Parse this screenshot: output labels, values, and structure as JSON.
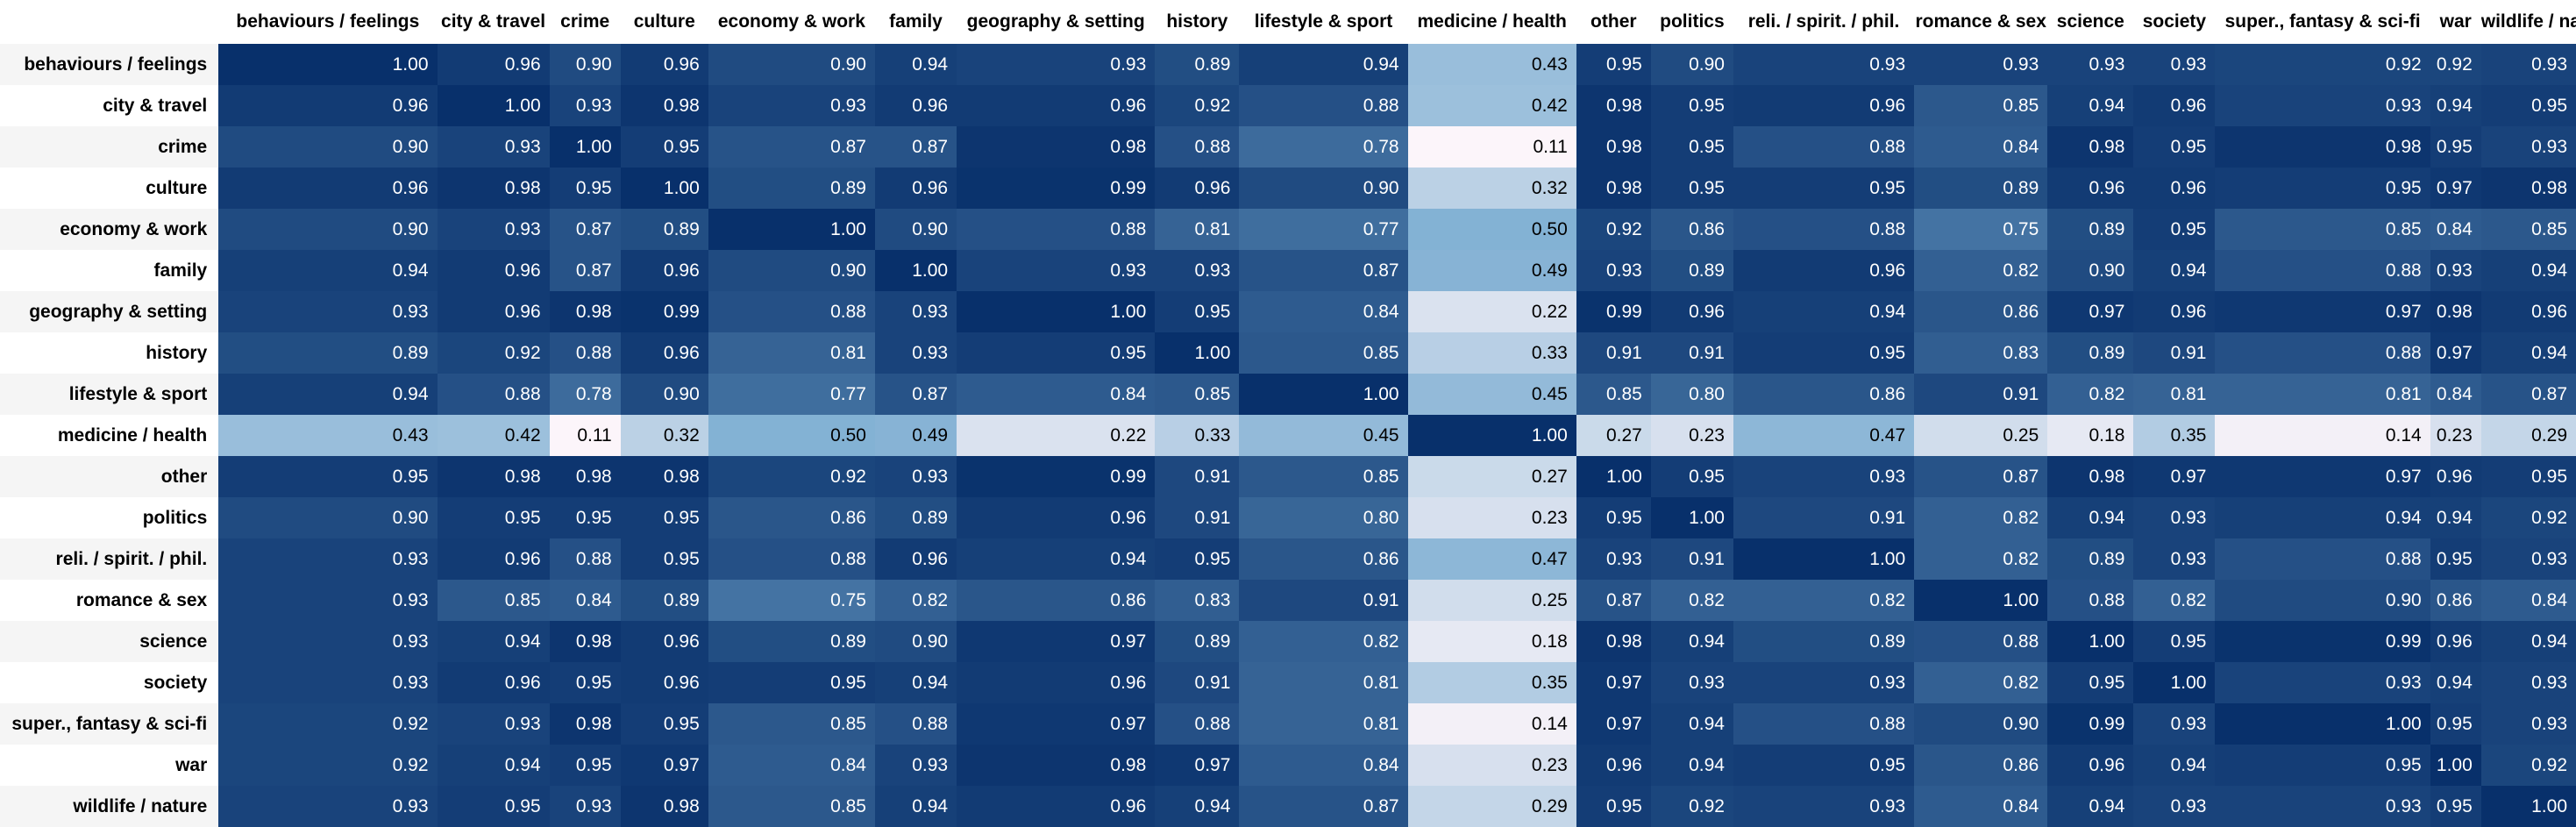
{
  "chart_data": {
    "type": "heatmap",
    "colormap": {
      "low": "#fff7fb",
      "mid": "#74a9cf",
      "high": "#08306b"
    },
    "columns": [
      "behaviours / feelings",
      "city & travel",
      "crime",
      "culture",
      "economy & work",
      "family",
      "geography & setting",
      "history",
      "lifestyle & sport",
      "medicine / health",
      "other",
      "politics",
      "reli. / spirit. / phil.",
      "romance & sex",
      "science",
      "society",
      "super., fantasy & sci-fi",
      "war",
      "wildlife / nature"
    ],
    "rows": [
      "behaviours / feelings",
      "city & travel",
      "crime",
      "culture",
      "economy & work",
      "family",
      "geography & setting",
      "history",
      "lifestyle & sport",
      "medicine / health",
      "other",
      "politics",
      "reli. / spirit. / phil.",
      "romance & sex",
      "science",
      "society",
      "super., fantasy & sci-fi",
      "war",
      "wildlife / nature"
    ],
    "values": [
      [
        1.0,
        0.96,
        0.9,
        0.96,
        0.9,
        0.94,
        0.93,
        0.89,
        0.94,
        0.43,
        0.95,
        0.9,
        0.93,
        0.93,
        0.93,
        0.93,
        0.92,
        0.92,
        0.93
      ],
      [
        0.96,
        1.0,
        0.93,
        0.98,
        0.93,
        0.96,
        0.96,
        0.92,
        0.88,
        0.42,
        0.98,
        0.95,
        0.96,
        0.85,
        0.94,
        0.96,
        0.93,
        0.94,
        0.95
      ],
      [
        0.9,
        0.93,
        1.0,
        0.95,
        0.87,
        0.87,
        0.98,
        0.88,
        0.78,
        0.11,
        0.98,
        0.95,
        0.88,
        0.84,
        0.98,
        0.95,
        0.98,
        0.95,
        0.93
      ],
      [
        0.96,
        0.98,
        0.95,
        1.0,
        0.89,
        0.96,
        0.99,
        0.96,
        0.9,
        0.32,
        0.98,
        0.95,
        0.95,
        0.89,
        0.96,
        0.96,
        0.95,
        0.97,
        0.98
      ],
      [
        0.9,
        0.93,
        0.87,
        0.89,
        1.0,
        0.9,
        0.88,
        0.81,
        0.77,
        0.5,
        0.92,
        0.86,
        0.88,
        0.75,
        0.89,
        0.95,
        0.85,
        0.84,
        0.85
      ],
      [
        0.94,
        0.96,
        0.87,
        0.96,
        0.9,
        1.0,
        0.93,
        0.93,
        0.87,
        0.49,
        0.93,
        0.89,
        0.96,
        0.82,
        0.9,
        0.94,
        0.88,
        0.93,
        0.94
      ],
      [
        0.93,
        0.96,
        0.98,
        0.99,
        0.88,
        0.93,
        1.0,
        0.95,
        0.84,
        0.22,
        0.99,
        0.96,
        0.94,
        0.86,
        0.97,
        0.96,
        0.97,
        0.98,
        0.96
      ],
      [
        0.89,
        0.92,
        0.88,
        0.96,
        0.81,
        0.93,
        0.95,
        1.0,
        0.85,
        0.33,
        0.91,
        0.91,
        0.95,
        0.83,
        0.89,
        0.91,
        0.88,
        0.97,
        0.94
      ],
      [
        0.94,
        0.88,
        0.78,
        0.9,
        0.77,
        0.87,
        0.84,
        0.85,
        1.0,
        0.45,
        0.85,
        0.8,
        0.86,
        0.91,
        0.82,
        0.81,
        0.81,
        0.84,
        0.87
      ],
      [
        0.43,
        0.42,
        0.11,
        0.32,
        0.5,
        0.49,
        0.22,
        0.33,
        0.45,
        1.0,
        0.27,
        0.23,
        0.47,
        0.25,
        0.18,
        0.35,
        0.14,
        0.23,
        0.29
      ],
      [
        0.95,
        0.98,
        0.98,
        0.98,
        0.92,
        0.93,
        0.99,
        0.91,
        0.85,
        0.27,
        1.0,
        0.95,
        0.93,
        0.87,
        0.98,
        0.97,
        0.97,
        0.96,
        0.95
      ],
      [
        0.9,
        0.95,
        0.95,
        0.95,
        0.86,
        0.89,
        0.96,
        0.91,
        0.8,
        0.23,
        0.95,
        1.0,
        0.91,
        0.82,
        0.94,
        0.93,
        0.94,
        0.94,
        0.92
      ],
      [
        0.93,
        0.96,
        0.88,
        0.95,
        0.88,
        0.96,
        0.94,
        0.95,
        0.86,
        0.47,
        0.93,
        0.91,
        1.0,
        0.82,
        0.89,
        0.93,
        0.88,
        0.95,
        0.93
      ],
      [
        0.93,
        0.85,
        0.84,
        0.89,
        0.75,
        0.82,
        0.86,
        0.83,
        0.91,
        0.25,
        0.87,
        0.82,
        0.82,
        1.0,
        0.88,
        0.82,
        0.9,
        0.86,
        0.84
      ],
      [
        0.93,
        0.94,
        0.98,
        0.96,
        0.89,
        0.9,
        0.97,
        0.89,
        0.82,
        0.18,
        0.98,
        0.94,
        0.89,
        0.88,
        1.0,
        0.95,
        0.99,
        0.96,
        0.94
      ],
      [
        0.93,
        0.96,
        0.95,
        0.96,
        0.95,
        0.94,
        0.96,
        0.91,
        0.81,
        0.35,
        0.97,
        0.93,
        0.93,
        0.82,
        0.95,
        1.0,
        0.93,
        0.94,
        0.93
      ],
      [
        0.92,
        0.93,
        0.98,
        0.95,
        0.85,
        0.88,
        0.97,
        0.88,
        0.81,
        0.14,
        0.97,
        0.94,
        0.88,
        0.9,
        0.99,
        0.93,
        1.0,
        0.95,
        0.93
      ],
      [
        0.92,
        0.94,
        0.95,
        0.97,
        0.84,
        0.93,
        0.98,
        0.97,
        0.84,
        0.23,
        0.96,
        0.94,
        0.95,
        0.86,
        0.96,
        0.94,
        0.95,
        1.0,
        0.92
      ],
      [
        0.93,
        0.95,
        0.93,
        0.98,
        0.85,
        0.94,
        0.96,
        0.94,
        0.87,
        0.29,
        0.95,
        0.92,
        0.93,
        0.84,
        0.94,
        0.93,
        0.93,
        0.95,
        1.0
      ]
    ]
  }
}
